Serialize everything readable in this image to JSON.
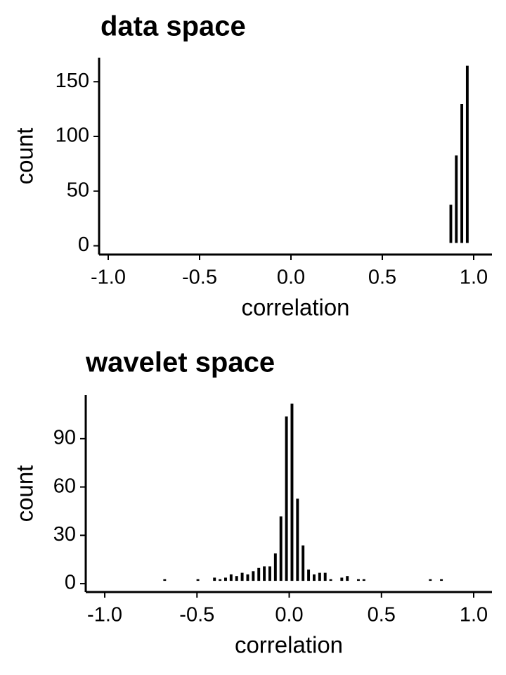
{
  "chart_data": [
    {
      "type": "histogram",
      "title": "data space",
      "x_label": "correlation",
      "y_label": "count",
      "bins": [
        0.86,
        0.89,
        0.92,
        0.95,
        0.98
      ],
      "values": [
        35,
        80,
        127,
        162
      ],
      "color": "#000000",
      "xlim": [
        -1.05,
        1.1
      ],
      "xticks": [
        {
          "value": -1,
          "label": "-1.0"
        },
        -0.5,
        {
          "value": 0,
          "label": "0.0"
        },
        0.5,
        {
          "value": 1,
          "label": "1.0"
        }
      ],
      "ylim": [
        -8,
        172
      ],
      "yticks": [
        0,
        50,
        100,
        150
      ]
    },
    {
      "type": "histogram",
      "title": "wavelet space",
      "x_label": "correlation",
      "y_label": "count",
      "bins": [
        -0.72,
        -0.69,
        -0.66,
        -0.63,
        -0.6,
        -0.57,
        -0.54,
        -0.51,
        -0.48,
        -0.45,
        -0.42,
        -0.39,
        -0.36,
        -0.33,
        -0.3,
        -0.27,
        -0.24,
        -0.21,
        -0.18,
        -0.15,
        -0.12,
        -0.09,
        -0.06,
        -0.03,
        0,
        0.03,
        0.06,
        0.09,
        0.12,
        0.15,
        0.18,
        0.21,
        0.24,
        0.27,
        0.3,
        0.33,
        0.36,
        0.39,
        0.42,
        0.45,
        0.48,
        0.51,
        0.54,
        0.57,
        0.6,
        0.63,
        0.66,
        0.69,
        0.72,
        0.75,
        0.78,
        0.81,
        0.84,
        0.87
      ],
      "values": [
        0,
        1,
        0,
        0,
        0,
        0,
        0,
        1,
        0,
        0,
        2,
        1,
        2,
        4,
        3,
        5,
        4,
        6,
        8,
        9,
        9,
        17,
        40,
        102,
        110,
        51,
        22,
        7,
        4,
        5,
        5,
        1,
        0,
        2,
        3,
        0,
        1,
        1,
        0,
        0,
        0,
        0,
        0,
        0,
        0,
        0,
        0,
        0,
        0,
        1,
        0,
        1,
        0
      ],
      "color": "#000000",
      "xlim": [
        -1.103,
        1.099
      ],
      "xticks": [
        {
          "value": -1,
          "label": "-1.0"
        },
        -0.5,
        {
          "value": 0,
          "label": "0.0"
        },
        0.5,
        {
          "value": 1,
          "label": "1.0"
        }
      ],
      "ylim": [
        -5.2,
        117
      ],
      "yticks": [
        0,
        30,
        60,
        90
      ]
    }
  ]
}
